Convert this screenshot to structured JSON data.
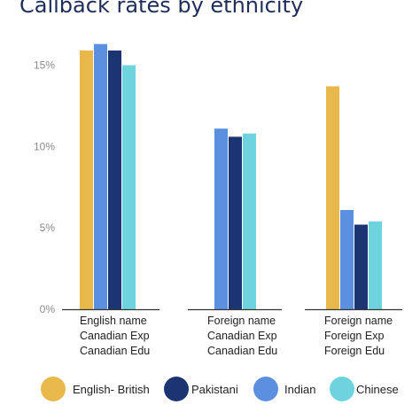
{
  "chart_data": {
    "type": "bar",
    "title": "Callback rates by ethnicity",
    "categories": [
      [
        "English name",
        "Canadian Exp",
        "Canadian Edu"
      ],
      [
        "Foreign name",
        "Canadian Exp",
        "Canadian Edu"
      ],
      [
        "Foreign name",
        "Foreign Exp",
        "Foreign  Edu"
      ]
    ],
    "series": [
      {
        "name": "English- British",
        "color": "#e8b84b",
        "values": [
          15.9,
          null,
          13.7
        ]
      },
      {
        "name": "Pakistani",
        "color": "#1c3572",
        "values": [
          15.9,
          10.6,
          5.2
        ]
      },
      {
        "name": "Indian",
        "color": "#5b8fe0",
        "values": [
          16.3,
          11.1,
          6.1
        ]
      },
      {
        "name": "Chinese",
        "color": "#6fd3dd",
        "values": [
          15.0,
          10.8,
          5.4
        ]
      }
    ],
    "y_ticks": [
      "0%",
      "5%",
      "10%",
      "15%"
    ],
    "y_tick_values": [
      0,
      5,
      10,
      15
    ],
    "ylim": [
      0,
      16.5
    ],
    "grid": false,
    "legend_position": "bottom"
  }
}
